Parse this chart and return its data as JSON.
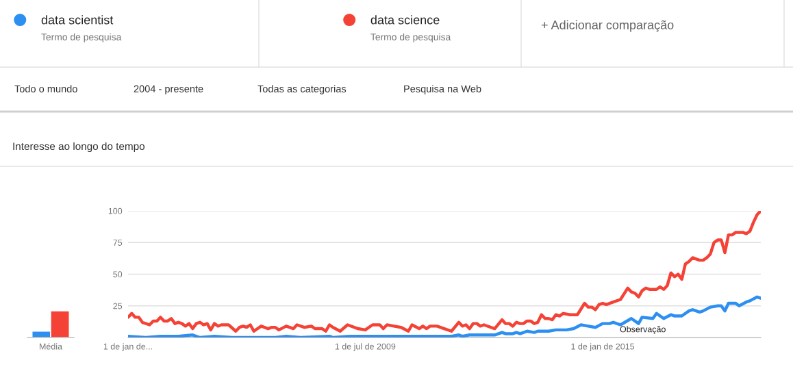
{
  "chart_data": [
    {
      "type": "bar",
      "categories": [
        "Média"
      ],
      "ylim": [
        0,
        100
      ],
      "tick_labels": "x",
      "series": [
        {
          "color": "#2d8ff0",
          "values": [
            5
          ]
        },
        {
          "color": "#f44336",
          "values": [
            21
          ]
        }
      ]
    },
    {
      "type": "line",
      "title": "Interesse ao longo do tempo",
      "xlim": [
        "2004-01",
        "2018-09"
      ],
      "ylim": [
        0,
        100
      ],
      "yticks": [
        25,
        50,
        75,
        100
      ],
      "xticks": [
        {
          "value": "2004-01-01",
          "label": "1 de jan de..."
        },
        {
          "value": "2009-07-01",
          "label": "1 de jul de 2009"
        },
        {
          "value": "2015-01-01",
          "label": "1 de jan de 2015"
        }
      ],
      "grid": "y",
      "legend": "top left",
      "marker": "none",
      "line_style": "solid",
      "annotations": [
        "Termo de pesquisa",
        "Termo de pesquisa",
        "+ Adicionar comparação",
        "Todo o mundo",
        "2004 - presente",
        "Todas as categorias",
        "Pesquisa na Web",
        "Observação"
      ],
      "series": [
        {
          "name": "data scientist",
          "color": "#2d8ff0",
          "x": [
            "2004-01",
            "2004-06",
            "2004-10",
            "2005-03",
            "2005-07",
            "2005-09",
            "2006-01",
            "2006-06",
            "2007-06",
            "2007-09",
            "2008-01",
            "2008-09",
            "2008-10",
            "2009-03",
            "2009-09",
            "2010-03",
            "2010-08",
            "2011-07",
            "2011-09",
            "2011-10",
            "2011-12",
            "2012-03",
            "2012-07",
            "2012-09",
            "2012-10",
            "2012-12",
            "2013-01",
            "2013-02",
            "2013-04",
            "2013-06",
            "2013-07",
            "2013-10",
            "2013-12",
            "2014-03",
            "2014-05",
            "2014-07",
            "2014-09",
            "2014-11",
            "2015-01",
            "2015-03",
            "2015-04",
            "2015-06",
            "2015-09",
            "2015-11",
            "2015-12",
            "2016-03",
            "2016-04",
            "2016-06",
            "2016-08",
            "2016-09",
            "2016-11",
            "2017-01",
            "2017-02",
            "2017-04",
            "2017-05",
            "2017-07",
            "2017-09",
            "2017-10",
            "2017-11",
            "2017-12",
            "2018-02",
            "2018-03",
            "2018-05",
            "2018-06",
            "2018-08",
            "2018-09"
          ],
          "values": [
            1,
            0,
            1,
            1,
            2,
            0,
            1,
            0,
            0,
            1,
            0,
            1,
            0,
            1,
            1,
            1,
            1,
            1,
            2,
            1,
            2,
            2,
            2,
            4,
            3,
            3,
            4,
            3,
            5,
            4,
            5,
            5,
            6,
            6,
            7,
            10,
            9,
            8,
            11,
            11,
            12,
            10,
            15,
            11,
            16,
            15,
            19,
            15,
            18,
            17,
            17,
            21,
            22,
            20,
            21,
            24,
            25,
            25,
            21,
            27,
            27,
            25,
            28,
            29,
            32,
            31
          ]
        },
        {
          "name": "data science",
          "color": "#f44336",
          "x": [
            "2004-01",
            "2004-02",
            "2004-03",
            "2004-04",
            "2004-05",
            "2004-07",
            "2004-08",
            "2004-09",
            "2004-10",
            "2004-11",
            "2004-12",
            "2005-01",
            "2005-02",
            "2005-03",
            "2005-04",
            "2005-05",
            "2005-06",
            "2005-07",
            "2005-08",
            "2005-09",
            "2005-10",
            "2005-11",
            "2005-12",
            "2006-01",
            "2006-02",
            "2006-03",
            "2006-05",
            "2006-07",
            "2006-08",
            "2006-09",
            "2006-10",
            "2006-11",
            "2006-12",
            "2007-02",
            "2007-04",
            "2007-05",
            "2007-06",
            "2007-07",
            "2007-09",
            "2007-11",
            "2007-12",
            "2008-02",
            "2008-04",
            "2008-05",
            "2008-07",
            "2008-08",
            "2008-09",
            "2008-10",
            "2008-12",
            "2009-02",
            "2009-05",
            "2009-07",
            "2009-09",
            "2009-11",
            "2009-12",
            "2010-01",
            "2010-03",
            "2010-05",
            "2010-07",
            "2010-08",
            "2010-10",
            "2010-11",
            "2010-12",
            "2011-01",
            "2011-03",
            "2011-05",
            "2011-07",
            "2011-09",
            "2011-10",
            "2011-11",
            "2011-12",
            "2012-01",
            "2012-02",
            "2012-03",
            "2012-04",
            "2012-07",
            "2012-09",
            "2012-10",
            "2012-11",
            "2012-12",
            "2013-01",
            "2013-02",
            "2013-03",
            "2013-04",
            "2013-05",
            "2013-06",
            "2013-07",
            "2013-08",
            "2013-09",
            "2013-10",
            "2013-11",
            "2013-12",
            "2014-01",
            "2014-02",
            "2014-04",
            "2014-06",
            "2014-08",
            "2014-09",
            "2014-10",
            "2014-11",
            "2014-12",
            "2015-01",
            "2015-02",
            "2015-03",
            "2015-04",
            "2015-06",
            "2015-08",
            "2015-09",
            "2015-10",
            "2015-11",
            "2015-12",
            "2016-01",
            "2016-02",
            "2016-04",
            "2016-05",
            "2016-06",
            "2016-07",
            "2016-08",
            "2016-09",
            "2016-10",
            "2016-11",
            "2016-12",
            "2017-01",
            "2017-02",
            "2017-04",
            "2017-05",
            "2017-06",
            "2017-07",
            "2017-08",
            "2017-09",
            "2017-10",
            "2017-11",
            "2017-12",
            "2018-01",
            "2018-02",
            "2018-04",
            "2018-05",
            "2018-06",
            "2018-07",
            "2018-08",
            "2018-09"
          ],
          "values": [
            16,
            19,
            16,
            16,
            12,
            10,
            13,
            13,
            16,
            13,
            13,
            15,
            11,
            12,
            11,
            9,
            11,
            7,
            11,
            12,
            10,
            11,
            6,
            11,
            9,
            10,
            10,
            5,
            8,
            9,
            8,
            10,
            5,
            9,
            7,
            8,
            8,
            6,
            9,
            7,
            10,
            8,
            9,
            7,
            7,
            5,
            10,
            8,
            5,
            10,
            7,
            6,
            10,
            10,
            7,
            10,
            9,
            8,
            5,
            10,
            7,
            9,
            7,
            9,
            9,
            7,
            5,
            12,
            9,
            10,
            7,
            11,
            11,
            9,
            10,
            7,
            14,
            11,
            11,
            9,
            12,
            11,
            11,
            13,
            13,
            11,
            12,
            18,
            15,
            15,
            14,
            18,
            17,
            19,
            18,
            18,
            27,
            24,
            24,
            22,
            26,
            27,
            26,
            27,
            28,
            30,
            39,
            36,
            35,
            32,
            37,
            39,
            38,
            38,
            40,
            38,
            41,
            51,
            48,
            50,
            46,
            58,
            60,
            63,
            61,
            61,
            63,
            66,
            75,
            77,
            77,
            67,
            81,
            81,
            83,
            83,
            82,
            84,
            91,
            97,
            100
          ]
        }
      ]
    }
  ]
}
